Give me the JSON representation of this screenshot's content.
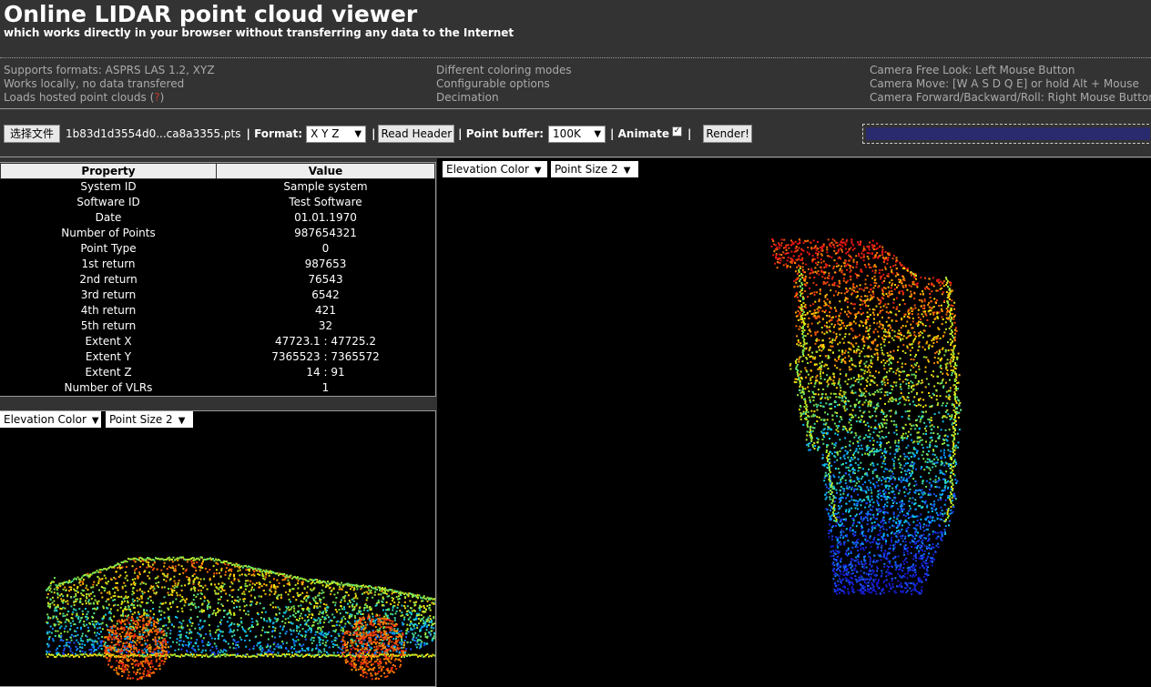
{
  "header": {
    "title": "Online LIDAR point cloud viewer",
    "subtitle": "which works directly in your browser without transferring any data to the Internet"
  },
  "features": {
    "col1": [
      "Supports formats: ASPRS LAS 1.2, XYZ",
      "Works locally, no data transfered",
      "Loads hosted point clouds"
    ],
    "col1_help": "?",
    "col2": [
      "Different coloring modes",
      "Configurable options",
      "Decimation"
    ],
    "col3": [
      "Camera Free Look: Left Mouse Button",
      "Camera Move: [W A S D Q E] or hold Alt + Mouse",
      "Camera Forward/Backward/Roll: Right Mouse Button"
    ]
  },
  "toolbar": {
    "choose_file": "选择文件",
    "file_name": "1b83d1d3554d0...ca8a3355.pts",
    "format_label": "| Format:",
    "format_value": "X Y Z",
    "read_header": "Read Header",
    "sep1": "|",
    "buffer_label": "| Point buffer:",
    "buffer_value": "100K",
    "animate_label": "| Animate",
    "animate_checked": true,
    "sep2": "|",
    "render": "Render!"
  },
  "properties": {
    "headers": [
      "Property",
      "Value"
    ],
    "rows": [
      [
        "System ID",
        "Sample system"
      ],
      [
        "Software ID",
        "Test Software"
      ],
      [
        "Date",
        "01.01.1970"
      ],
      [
        "Number of Points",
        "987654321"
      ],
      [
        "Point Type",
        "0"
      ],
      [
        "1st return",
        "987653"
      ],
      [
        "2nd return",
        "76543"
      ],
      [
        "3rd return",
        "6542"
      ],
      [
        "4th return",
        "421"
      ],
      [
        "5th return",
        "32"
      ],
      [
        "Extent X",
        "47723.1 : 47725.2"
      ],
      [
        "Extent Y",
        "7365523 : 7365572"
      ],
      [
        "Extent Z",
        "14 : 91"
      ],
      [
        "Number of VLRs",
        "1"
      ]
    ]
  },
  "viewer_small": {
    "color_mode": "Elevation Color",
    "point_size": "Point Size 2"
  },
  "viewer_big": {
    "color_mode": "Elevation Color",
    "point_size": "Point Size 2"
  },
  "colors": {
    "background": "#333333",
    "canvas": "#000000",
    "progress": "#2a2a6e"
  }
}
